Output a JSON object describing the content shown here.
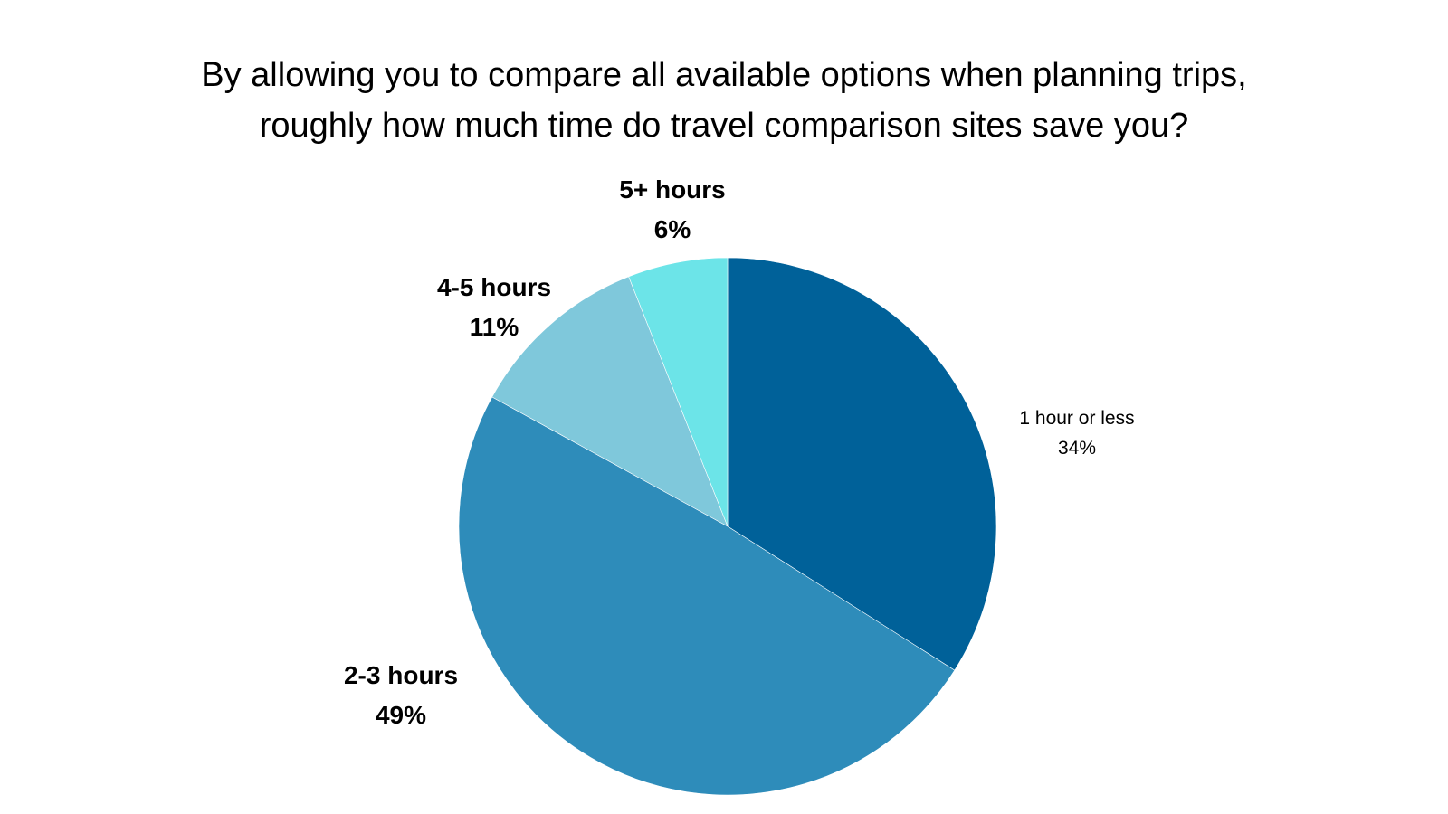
{
  "chart_data": {
    "type": "pie",
    "title_lines": [
      "By allowing you to compare all available options when planning trips,",
      "roughly how much time do travel comparison sites save you?"
    ],
    "slices": [
      {
        "label": "1 hour or less",
        "value": 34,
        "value_text": "34%",
        "color": "#006199",
        "label_weight": "normal"
      },
      {
        "label": "2-3 hours",
        "value": 49,
        "value_text": "49%",
        "color": "#2e8cba",
        "label_weight": "bold"
      },
      {
        "label": "4-5 hours",
        "value": 11,
        "value_text": "11%",
        "color": "#7fc8db",
        "label_weight": "bold"
      },
      {
        "label": "5+ hours",
        "value": 6,
        "value_text": "6%",
        "color": "#6ce4e8",
        "label_weight": "bold"
      }
    ],
    "start_angle": "12 o'clock",
    "direction": "clockwise",
    "legend": "none"
  }
}
